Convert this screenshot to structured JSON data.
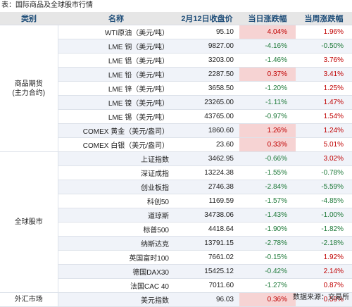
{
  "caption": "表：国际商品及全球股市行情",
  "headers": {
    "category": "类别",
    "name": "名称",
    "price": "2月12日收盘价",
    "day": "当日涨跌幅",
    "week": "当周涨跌幅"
  },
  "groups": {
    "commodity": "商品期货\n(主力合约)",
    "stocks": "全球股市",
    "fx": "外汇市场"
  },
  "rows": [
    {
      "name": "WTI原油（美元/吨）",
      "price": "95.10",
      "day": "4.04%",
      "week": "1.96%"
    },
    {
      "name": "LME 铜（美元/吨）",
      "price": "9827.00",
      "day": "-4.16%",
      "week": "-0.50%"
    },
    {
      "name": "LME 铝（美元/吨）",
      "price": "3203.00",
      "day": "-1.46%",
      "week": "3.76%"
    },
    {
      "name": "LME 铅（美元/吨）",
      "price": "2287.50",
      "day": "0.37%",
      "week": "3.41%"
    },
    {
      "name": "LME 锌（美元/吨）",
      "price": "3658.50",
      "day": "-1.20%",
      "week": "1.25%"
    },
    {
      "name": "LME 镍（美元/吨）",
      "price": "23265.00",
      "day": "-1.11%",
      "week": "1.47%"
    },
    {
      "name": "LME 锡（美元/吨）",
      "price": "43765.00",
      "day": "-0.97%",
      "week": "1.54%"
    },
    {
      "name": "COMEX 黄金（美元/盎司）",
      "price": "1860.60",
      "day": "1.26%",
      "week": "1.24%"
    },
    {
      "name": "COMEX 白银（美元/盎司）",
      "price": "23.60",
      "day": "0.33%",
      "week": "5.01%"
    },
    {
      "name": "上证指数",
      "price": "3462.95",
      "day": "-0.66%",
      "week": "3.02%"
    },
    {
      "name": "深证成指",
      "price": "13224.38",
      "day": "-1.55%",
      "week": "-0.78%"
    },
    {
      "name": "创业板指",
      "price": "2746.38",
      "day": "-2.84%",
      "week": "-5.59%"
    },
    {
      "name": "科创50",
      "price": "1169.59",
      "day": "-1.57%",
      "week": "-4.85%"
    },
    {
      "name": "道琼斯",
      "price": "34738.06",
      "day": "-1.43%",
      "week": "-1.00%"
    },
    {
      "name": "标普500",
      "price": "4418.64",
      "day": "-1.90%",
      "week": "-1.82%"
    },
    {
      "name": "纳斯达克",
      "price": "13791.15",
      "day": "-2.78%",
      "week": "-2.18%"
    },
    {
      "name": "英国富时100",
      "price": "7661.02",
      "day": "-0.15%",
      "week": "1.92%"
    },
    {
      "name": "德国DAX30",
      "price": "15425.12",
      "day": "-0.42%",
      "week": "2.14%"
    },
    {
      "name": "法国CAC 40",
      "price": "7011.60",
      "day": "-1.27%",
      "week": "0.87%"
    },
    {
      "name": "美元指数",
      "price": "96.03",
      "day": "0.36%",
      "week": "0.59%"
    }
  ],
  "source": "数据来源：交易所",
  "colors": {
    "up": "#c00000",
    "down": "#1f7a3a",
    "up_highlight": "#f6d3d3",
    "header_bg": "#e6e6e6",
    "header_text": "#1f4e79"
  }
}
